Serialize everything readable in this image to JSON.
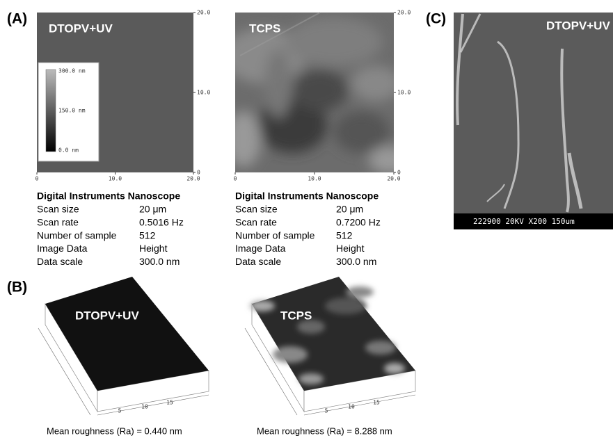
{
  "panel_labels": [
    "(A)",
    "(B)",
    "(C)"
  ],
  "afm_images": [
    {
      "label": "DTOPV+UV",
      "x_ticks": [
        "0",
        "10.0",
        "20.0"
      ],
      "y_ticks": [
        "20.0",
        "10.0",
        "0"
      ],
      "colorbar": [
        "300.0 nm",
        "150.0 nm",
        "0.0 nm"
      ]
    },
    {
      "label": "TCPS",
      "x_ticks": [
        "0",
        "10.0",
        "20.0"
      ],
      "y_ticks": [
        "20.0",
        "10.0",
        "0"
      ]
    }
  ],
  "scan_info": [
    {
      "title": "Digital Instruments Nanoscope",
      "rows": [
        [
          "Scan size",
          "20 μm"
        ],
        [
          "Scan rate",
          "0.5016 Hz"
        ],
        [
          "Number of sample",
          "512"
        ],
        [
          "Image Data",
          "Height"
        ],
        [
          "Data scale",
          "300.0 nm"
        ]
      ]
    },
    {
      "title": "Digital Instruments Nanoscope",
      "rows": [
        [
          "Scan size",
          "20 μm"
        ],
        [
          "Scan rate",
          "0.7200 Hz"
        ],
        [
          "Number of sample",
          "512"
        ],
        [
          "Image Data",
          "Height"
        ],
        [
          "Data scale",
          "300.0 nm"
        ]
      ]
    }
  ],
  "surface_plots": [
    {
      "label": "DTOPV+UV",
      "axis_ticks": [
        "5",
        "10",
        "15"
      ],
      "caption": "Mean roughness (Ra) = 0.440 nm"
    },
    {
      "label": "TCPS",
      "axis_ticks": [
        "5",
        "10",
        "15"
      ],
      "caption": "Mean roughness (Ra) = 8.288 nm"
    }
  ],
  "sem_image": {
    "label": "DTOPV+UV",
    "scale_bar": "222900 20KV X200 150um"
  }
}
